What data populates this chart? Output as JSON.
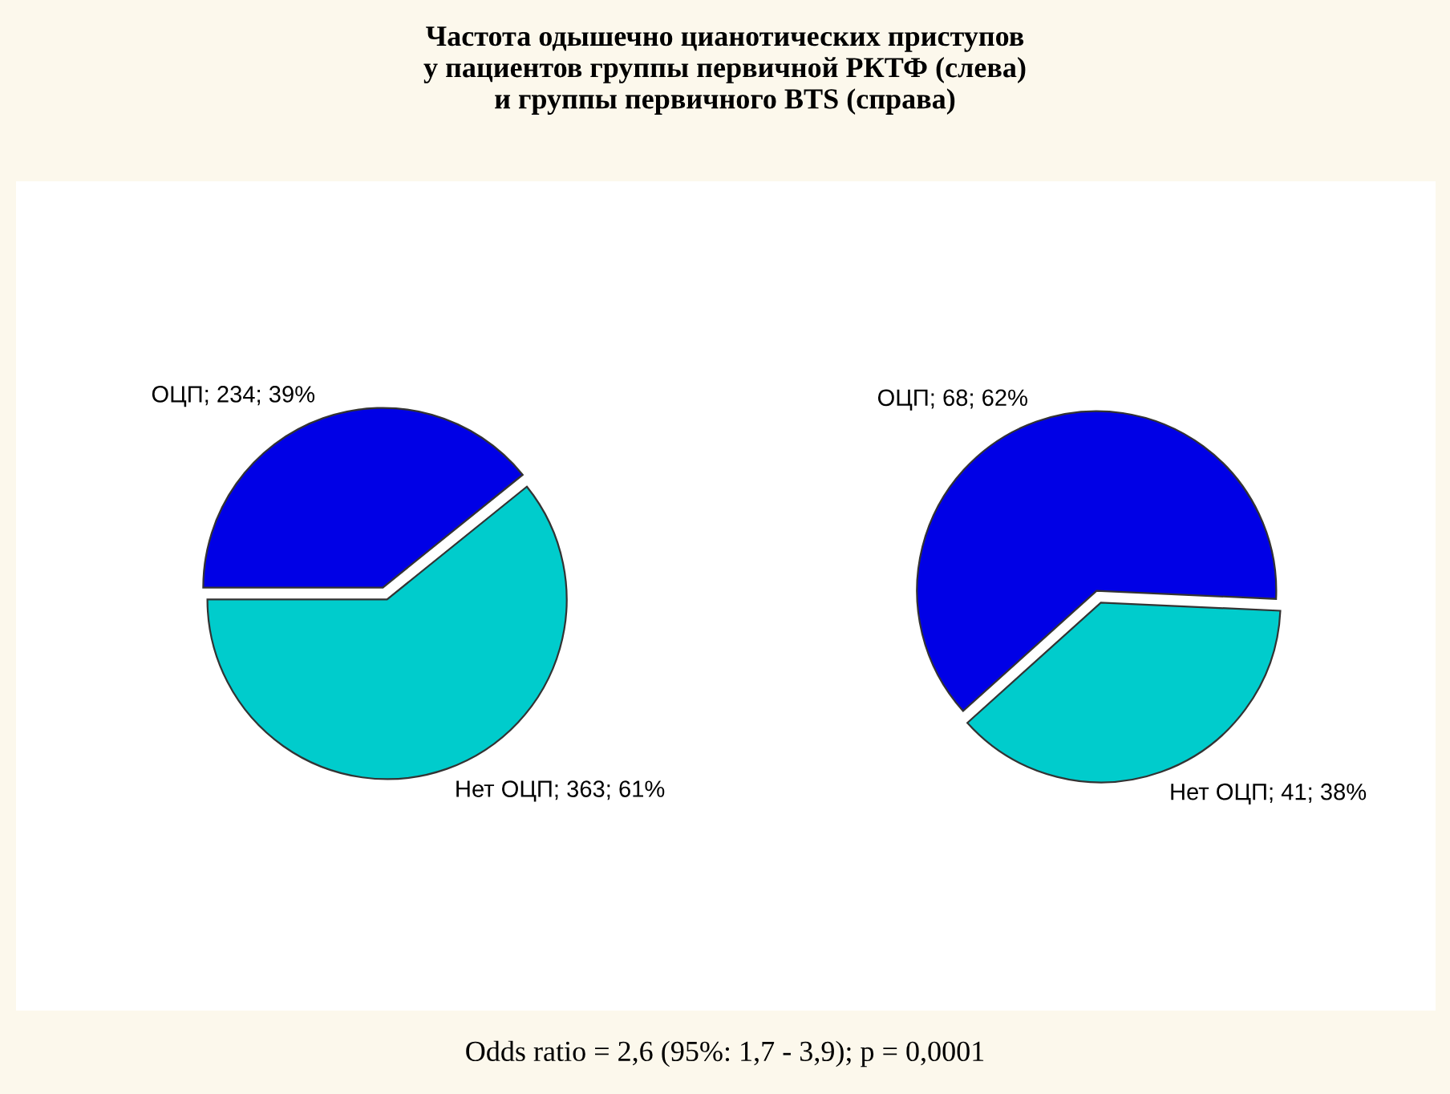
{
  "chart_data": [
    {
      "type": "pie",
      "title": "Частота одышечно цианотических приступов\nу пациентов группы первичной РКТФ (слева)\nи группы первичного BTS (справа)",
      "categories": [
        "ОЦП; 234; 39%",
        "Нет ОЦП; 363; 61%"
      ],
      "values": [
        234,
        363
      ],
      "colors": [
        "#0000e6",
        "#00cccc"
      ]
    },
    {
      "type": "pie",
      "categories": [
        "ОЦП; 68; 62%",
        "Нет ОЦП; 41; 38%"
      ],
      "values": [
        68,
        41
      ],
      "colors": [
        "#0000e6",
        "#00cccc"
      ],
      "annotations": [
        "Odds ratio = 2,6 (95%: 1,7 - 3,9); p = 0,0001"
      ]
    }
  ]
}
